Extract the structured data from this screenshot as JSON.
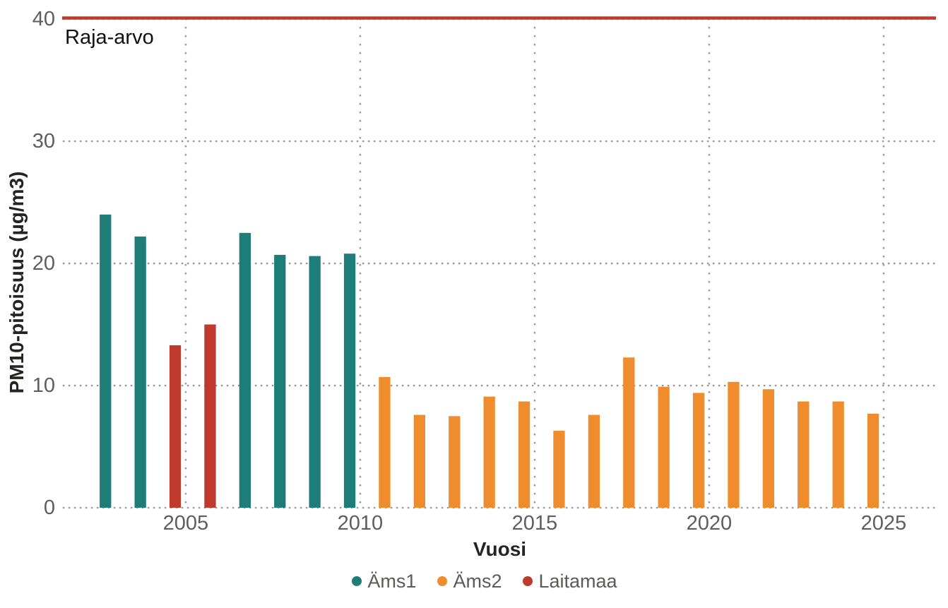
{
  "chart_data": {
    "type": "bar",
    "title": "",
    "xlabel": "Vuosi",
    "ylabel": "PM10-pitoisuus (µg/m3)",
    "xlim": [
      2001.5,
      2026.5
    ],
    "ylim": [
      0,
      40
    ],
    "x_ticks": [
      2005,
      2010,
      2015,
      2020,
      2025
    ],
    "y_ticks": [
      0,
      10,
      20,
      30,
      40
    ],
    "grid": "dotted",
    "legend_position": "bottom",
    "bar_offset_years": -0.3,
    "bar_width_years": 0.33,
    "limit_line": {
      "label": "Raja-arvo",
      "value": 40,
      "color": "#c23a2b"
    },
    "series": [
      {
        "name": "Äms1",
        "color": "#1e7d79",
        "points": [
          {
            "x": 2003,
            "y": 24.0
          },
          {
            "x": 2004,
            "y": 22.2
          },
          {
            "x": 2007,
            "y": 22.5
          },
          {
            "x": 2008,
            "y": 20.7
          },
          {
            "x": 2009,
            "y": 20.6
          },
          {
            "x": 2010,
            "y": 20.8
          }
        ]
      },
      {
        "name": "Äms2",
        "color": "#ef8d2e",
        "points": [
          {
            "x": 2011,
            "y": 10.7
          },
          {
            "x": 2012,
            "y": 7.6
          },
          {
            "x": 2013,
            "y": 7.5
          },
          {
            "x": 2014,
            "y": 9.1
          },
          {
            "x": 2015,
            "y": 8.7
          },
          {
            "x": 2016,
            "y": 6.3
          },
          {
            "x": 2017,
            "y": 7.6
          },
          {
            "x": 2018,
            "y": 12.3
          },
          {
            "x": 2019,
            "y": 9.9
          },
          {
            "x": 2020,
            "y": 9.4
          },
          {
            "x": 2021,
            "y": 10.3
          },
          {
            "x": 2022,
            "y": 9.7
          },
          {
            "x": 2023,
            "y": 8.7
          },
          {
            "x": 2024,
            "y": 8.7
          },
          {
            "x": 2025,
            "y": 7.7
          }
        ]
      },
      {
        "name": "Laitamaa",
        "color": "#bf392c",
        "points": [
          {
            "x": 2005,
            "y": 13.3
          },
          {
            "x": 2006,
            "y": 15.0
          }
        ]
      }
    ],
    "styles": {
      "grid_color": "#999999",
      "tick_color": "#605e5c",
      "axis_title_color": "#252423",
      "limit_label_color": "#111111"
    }
  }
}
